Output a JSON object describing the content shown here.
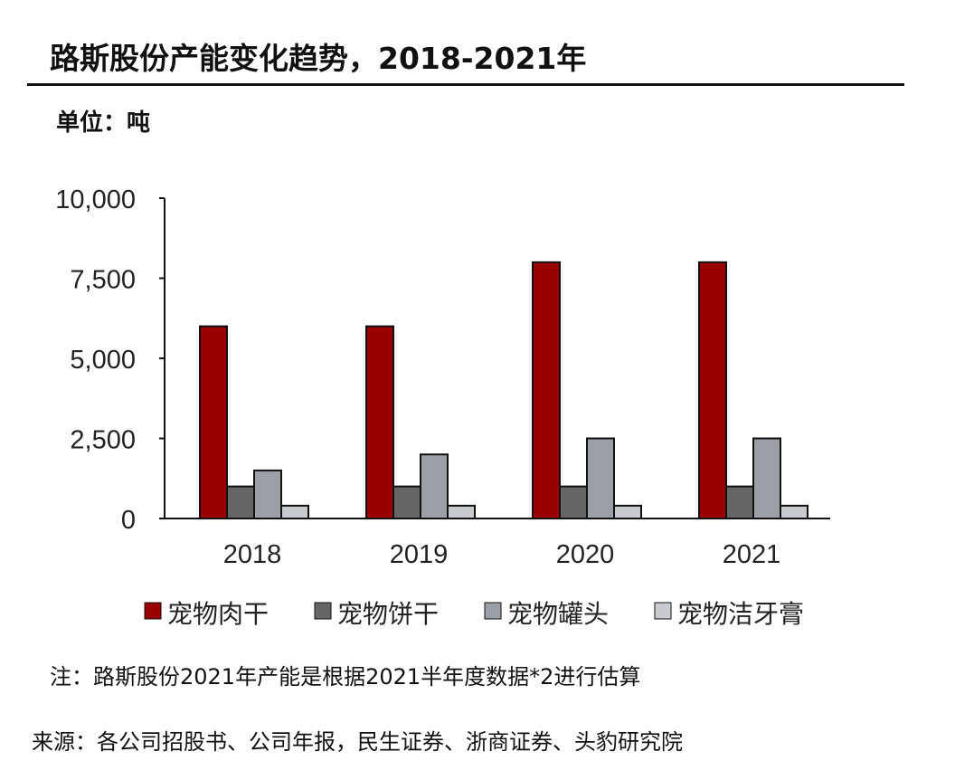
{
  "header": {
    "title": "路斯股份产能变化趋势，2018-2021年",
    "unit": "单位：吨"
  },
  "chart_data": {
    "type": "bar",
    "categories": [
      "2018",
      "2019",
      "2020",
      "2021"
    ],
    "series": [
      {
        "name": "宠物肉干",
        "color": "#9b0000",
        "values": [
          6000,
          6000,
          8000,
          8000
        ]
      },
      {
        "name": "宠物饼干",
        "color": "#666666",
        "values": [
          1000,
          1000,
          1000,
          1000
        ]
      },
      {
        "name": "宠物罐头",
        "color": "#9aa0a6",
        "values": [
          1500,
          2000,
          2500,
          2500
        ]
      },
      {
        "name": "宠物洁牙膏",
        "color": "#c8ccd0",
        "values": [
          400,
          400,
          400,
          400
        ]
      }
    ],
    "ylim": [
      0,
      10000
    ],
    "yticks": [
      "0",
      "2,500",
      "5,000",
      "7,500",
      "10,000"
    ],
    "yticks_values": [
      0,
      2500,
      5000,
      7500,
      10000
    ],
    "grid": false,
    "legend": "bottom"
  },
  "footer": {
    "note": "注：路斯股份2021年产能是根据2021半年度数据*2进行估算",
    "source": "来源：各公司招股书、公司年报，民生证券、浙商证券、头豹研究院"
  }
}
